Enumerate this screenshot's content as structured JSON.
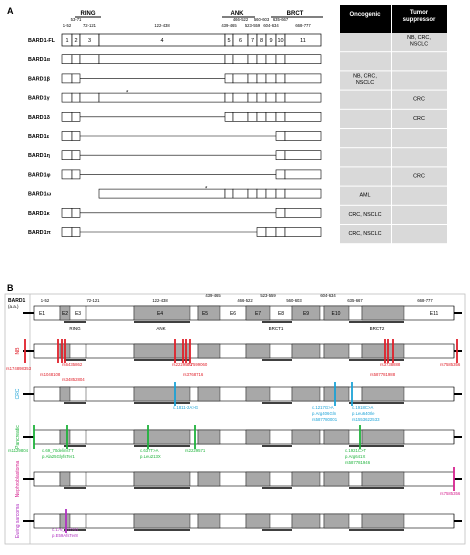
{
  "panel_a": {
    "label": "A",
    "header": {
      "domain_titles": [
        "RING",
        "ANK",
        "BRCT"
      ],
      "ranges": [
        "1-52",
        "53-71",
        "72-121",
        "122-438",
        "439-465",
        "466-522",
        "523-559",
        "560-603",
        "604-634",
        "635-667",
        "668-777"
      ],
      "exon_numbers": [
        "1",
        "2",
        "3",
        "4",
        "5",
        "6",
        "7",
        "8",
        "9",
        "10",
        "11"
      ]
    },
    "table_headers": {
      "oncogenic": "Oncogenic",
      "tumor_suppressor": "Tumor suppressor"
    },
    "isoforms": [
      {
        "name": "BARD1-FL",
        "oncogenic": "",
        "tumor_suppressor": "NB, CRC, NSCLC"
      },
      {
        "name": "BARD1α",
        "oncogenic": "",
        "tumor_suppressor": ""
      },
      {
        "name": "BARD1β",
        "oncogenic": "NB, CRC, NSCLC",
        "tumor_suppressor": ""
      },
      {
        "name": "BARD1γ",
        "oncogenic": "",
        "tumor_suppressor": "CRC"
      },
      {
        "name": "BARD1δ",
        "oncogenic": "",
        "tumor_suppressor": "CRC"
      },
      {
        "name": "BARD1ε",
        "oncogenic": "",
        "tumor_suppressor": ""
      },
      {
        "name": "BARD1η",
        "oncogenic": "",
        "tumor_suppressor": ""
      },
      {
        "name": "BARD1φ",
        "oncogenic": "",
        "tumor_suppressor": "CRC"
      },
      {
        "name": "BARD1ω",
        "oncogenic": "AML",
        "tumor_suppressor": ""
      },
      {
        "name": "BARD1κ",
        "oncogenic": "CRC, NSCLC",
        "tumor_suppressor": ""
      },
      {
        "name": "BARD1π",
        "oncogenic": "CRC, NSCLC",
        "tumor_suppressor": ""
      }
    ],
    "stop_marker": "*"
  },
  "panel_b": {
    "label": "B",
    "gene": "BARD1",
    "unit": "(a.a.)",
    "ranges": [
      "1-52",
      "53-71",
      "72-121",
      "122-438",
      "439-465",
      "466-522",
      "523-559",
      "560-603",
      "604-634",
      "635-667",
      "668-777"
    ],
    "exons": [
      "E1",
      "E2",
      "E3",
      "E4",
      "E5",
      "E6",
      "E7",
      "E8",
      "E9",
      "E10",
      "E11"
    ],
    "domains": [
      "RING",
      "ANK",
      "BRCT1",
      "BRCT2"
    ],
    "cancers": [
      {
        "name": "NB",
        "color": "#e0202a",
        "variants": [
          "rs174898353",
          "rs6435862",
          "rs1048108",
          "rs34852804",
          "rs2229571",
          "rs7599060",
          "rs3768716",
          "rs3738888",
          "rs587781988",
          "rs7585356"
        ]
      },
      {
        "name": "CRC",
        "color": "#1ba2d6",
        "variants": [
          "c.1811-2A>G",
          "c.1217G>A",
          "p.Arg406Gln",
          "rs587780001",
          "c.1918C>A",
          "p.Leu640Ile",
          "rs1553622533"
        ]
      },
      {
        "name": "Pancreatic",
        "color": "#1eb33b",
        "variants": [
          "rs1129804",
          "c.69_70delinsTT",
          "p.Ala25GlyfsTer1",
          "c.637T>A",
          "p.Leu213X",
          "rs2229571",
          "c.1921C>T",
          "p.Arg641X",
          "rs587781946"
        ]
      },
      {
        "name": "Nephroblastoma",
        "color": "#d6228f",
        "variants": [
          "rs7585356"
        ]
      },
      {
        "name": "Ewing sarcoma",
        "color": "#b030c0",
        "variants": [
          "c.176_177AG",
          "p.E59AfsTer8"
        ]
      }
    ]
  },
  "colors": {
    "exon_shade": "#a8a8a8",
    "cell_shade": "#d9d9d9",
    "header_black": "#000000"
  }
}
